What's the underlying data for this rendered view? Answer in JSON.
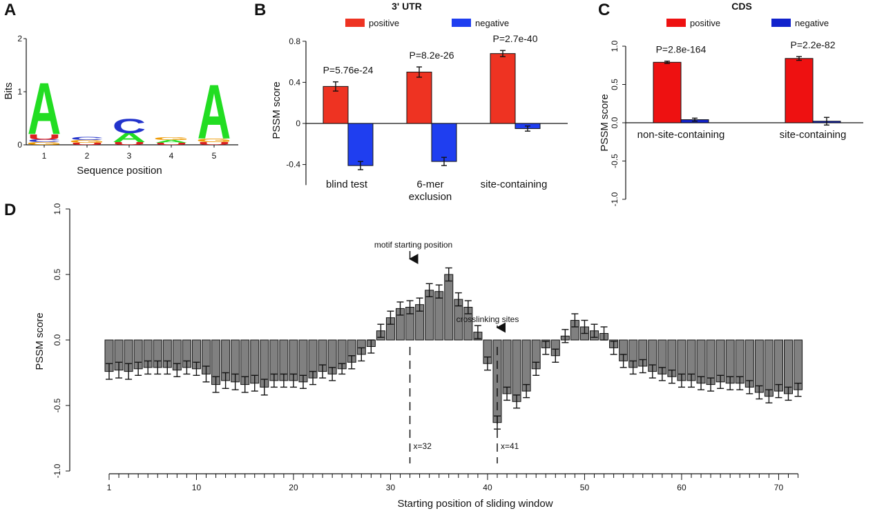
{
  "panel_labels": {
    "a": "A",
    "b": "B",
    "c": "C",
    "d": "D"
  },
  "chart_data": [
    {
      "panel": "A",
      "type": "sequence-logo",
      "xlabel": "Sequence position",
      "ylabel": "Bits",
      "x": [
        1,
        2,
        3,
        4,
        5
      ],
      "ylim": [
        0,
        2
      ],
      "yticks": [
        0,
        1,
        2
      ],
      "colors": {
        "A": "#22dd22",
        "C": "#2233cc",
        "G": "#ee9900",
        "U": "#dd2222"
      },
      "stacks": [
        [
          {
            "letter": "G",
            "height": 0.05
          },
          {
            "letter": "C",
            "height": 0.05
          },
          {
            "letter": "U",
            "height": 0.1
          },
          {
            "letter": "A",
            "height": 1.0
          }
        ],
        [
          {
            "letter": "U",
            "height": 0.04
          },
          {
            "letter": "G",
            "height": 0.05
          },
          {
            "letter": "C",
            "height": 0.06
          }
        ],
        [
          {
            "letter": "U",
            "height": 0.05
          },
          {
            "letter": "A",
            "height": 0.17
          },
          {
            "letter": "C",
            "height": 0.28
          }
        ],
        [
          {
            "letter": "U",
            "height": 0.04
          },
          {
            "letter": "A",
            "height": 0.05
          },
          {
            "letter": "G",
            "height": 0.05
          }
        ],
        [
          {
            "letter": "U",
            "height": 0.05
          },
          {
            "letter": "G",
            "height": 0.07
          },
          {
            "letter": "A",
            "height": 1.05
          }
        ]
      ]
    },
    {
      "panel": "B",
      "type": "bar",
      "title": "3' UTR",
      "ylabel": "PSSM score",
      "ylim": [
        -0.6,
        0.8
      ],
      "yticks": [
        "0.8",
        "0.4",
        "0",
        "-0.4"
      ],
      "categories": [
        "blind test",
        "6-mer\nexclusion",
        "site-containing"
      ],
      "pvalues": [
        "P=5.76e-24",
        "P=8.2e-26",
        "P=2.7e-40"
      ],
      "series": [
        {
          "name": "positive",
          "color": "#ee3322",
          "values": [
            0.36,
            0.5,
            0.68
          ],
          "errors": [
            0.045,
            0.05,
            0.03
          ]
        },
        {
          "name": "negative",
          "color": "#1f3ef0",
          "values": [
            -0.41,
            -0.37,
            -0.05
          ],
          "errors": [
            0.04,
            0.04,
            0.025
          ]
        }
      ],
      "legend": "top"
    },
    {
      "panel": "C",
      "type": "bar",
      "title": "CDS",
      "ylabel": "PSSM score",
      "ylim": [
        -1.0,
        1.0
      ],
      "yticks": [
        "1.0",
        "0.5",
        "0.0",
        "-0.5",
        "-1.0"
      ],
      "categories": [
        "non-site-containing",
        "site-containing"
      ],
      "pvalues": [
        "P=2.8e-164",
        "P=2.2e-82"
      ],
      "series": [
        {
          "name": "positive",
          "color": "#ee1111",
          "values": [
            0.79,
            0.84
          ],
          "errors": [
            0.015,
            0.025
          ]
        },
        {
          "name": "negative",
          "color": "#1122cc",
          "values": [
            0.04,
            0.02
          ],
          "errors": [
            0.02,
            0.05
          ]
        }
      ],
      "legend": "top"
    },
    {
      "panel": "D",
      "type": "bar",
      "xlabel": "Starting position of sliding window",
      "ylabel": "PSSM score",
      "ylim": [
        -1.0,
        1.0
      ],
      "yticks": [
        "1.0",
        "0.5",
        "0.0",
        "-0.5",
        "-1.0"
      ],
      "xticks": [
        "1",
        "10",
        "20",
        "30",
        "40",
        "50",
        "60",
        "70"
      ],
      "x": [
        1,
        2,
        3,
        4,
        5,
        6,
        7,
        8,
        9,
        10,
        11,
        12,
        13,
        14,
        15,
        16,
        17,
        18,
        19,
        20,
        21,
        22,
        23,
        24,
        25,
        26,
        27,
        28,
        29,
        30,
        31,
        32,
        33,
        34,
        35,
        36,
        37,
        38,
        39,
        40,
        41,
        42,
        43,
        44,
        45,
        46,
        47,
        48,
        49,
        50,
        51,
        52,
        53,
        54,
        55,
        56,
        57,
        58,
        59,
        60,
        61,
        62,
        63,
        64,
        65,
        66,
        67,
        68,
        69,
        70,
        71,
        72
      ],
      "values": [
        -0.24,
        -0.23,
        -0.24,
        -0.22,
        -0.21,
        -0.21,
        -0.21,
        -0.23,
        -0.21,
        -0.22,
        -0.26,
        -0.34,
        -0.31,
        -0.32,
        -0.34,
        -0.33,
        -0.36,
        -0.31,
        -0.31,
        -0.31,
        -0.32,
        -0.29,
        -0.24,
        -0.26,
        -0.22,
        -0.17,
        -0.11,
        -0.05,
        0.07,
        0.17,
        0.24,
        0.25,
        0.27,
        0.38,
        0.37,
        0.5,
        0.31,
        0.25,
        0.06,
        -0.18,
        -0.63,
        -0.41,
        -0.47,
        -0.39,
        -0.22,
        -0.06,
        -0.12,
        0.03,
        0.15,
        0.1,
        0.07,
        0.05,
        -0.06,
        -0.16,
        -0.21,
        -0.2,
        -0.24,
        -0.26,
        -0.28,
        -0.31,
        -0.31,
        -0.33,
        -0.34,
        -0.32,
        -0.33,
        -0.33,
        -0.36,
        -0.4,
        -0.43,
        -0.39,
        -0.41,
        -0.38
      ],
      "errors": [
        0.06,
        0.06,
        0.06,
        0.05,
        0.05,
        0.05,
        0.05,
        0.05,
        0.05,
        0.05,
        0.06,
        0.06,
        0.06,
        0.06,
        0.06,
        0.06,
        0.06,
        0.05,
        0.05,
        0.05,
        0.05,
        0.05,
        0.05,
        0.05,
        0.04,
        0.05,
        0.05,
        0.05,
        0.05,
        0.05,
        0.05,
        0.05,
        0.05,
        0.05,
        0.05,
        0.05,
        0.05,
        0.05,
        0.05,
        0.05,
        0.05,
        0.05,
        0.05,
        0.05,
        0.05,
        0.05,
        0.05,
        0.05,
        0.05,
        0.05,
        0.05,
        0.05,
        0.05,
        0.05,
        0.05,
        0.05,
        0.05,
        0.05,
        0.05,
        0.05,
        0.05,
        0.05,
        0.05,
        0.05,
        0.05,
        0.05,
        0.05,
        0.05,
        0.05,
        0.05,
        0.05,
        0.05
      ],
      "color": "#808080",
      "annotations": [
        {
          "text": "motif starting position",
          "x": 32,
          "y": 0.5
        },
        {
          "text": "crosslinking sites",
          "x": 41,
          "y": 0.0
        }
      ],
      "vlines": [
        {
          "x": 32,
          "label": "x=32"
        },
        {
          "x": 41,
          "label": "x=41"
        }
      ]
    }
  ]
}
